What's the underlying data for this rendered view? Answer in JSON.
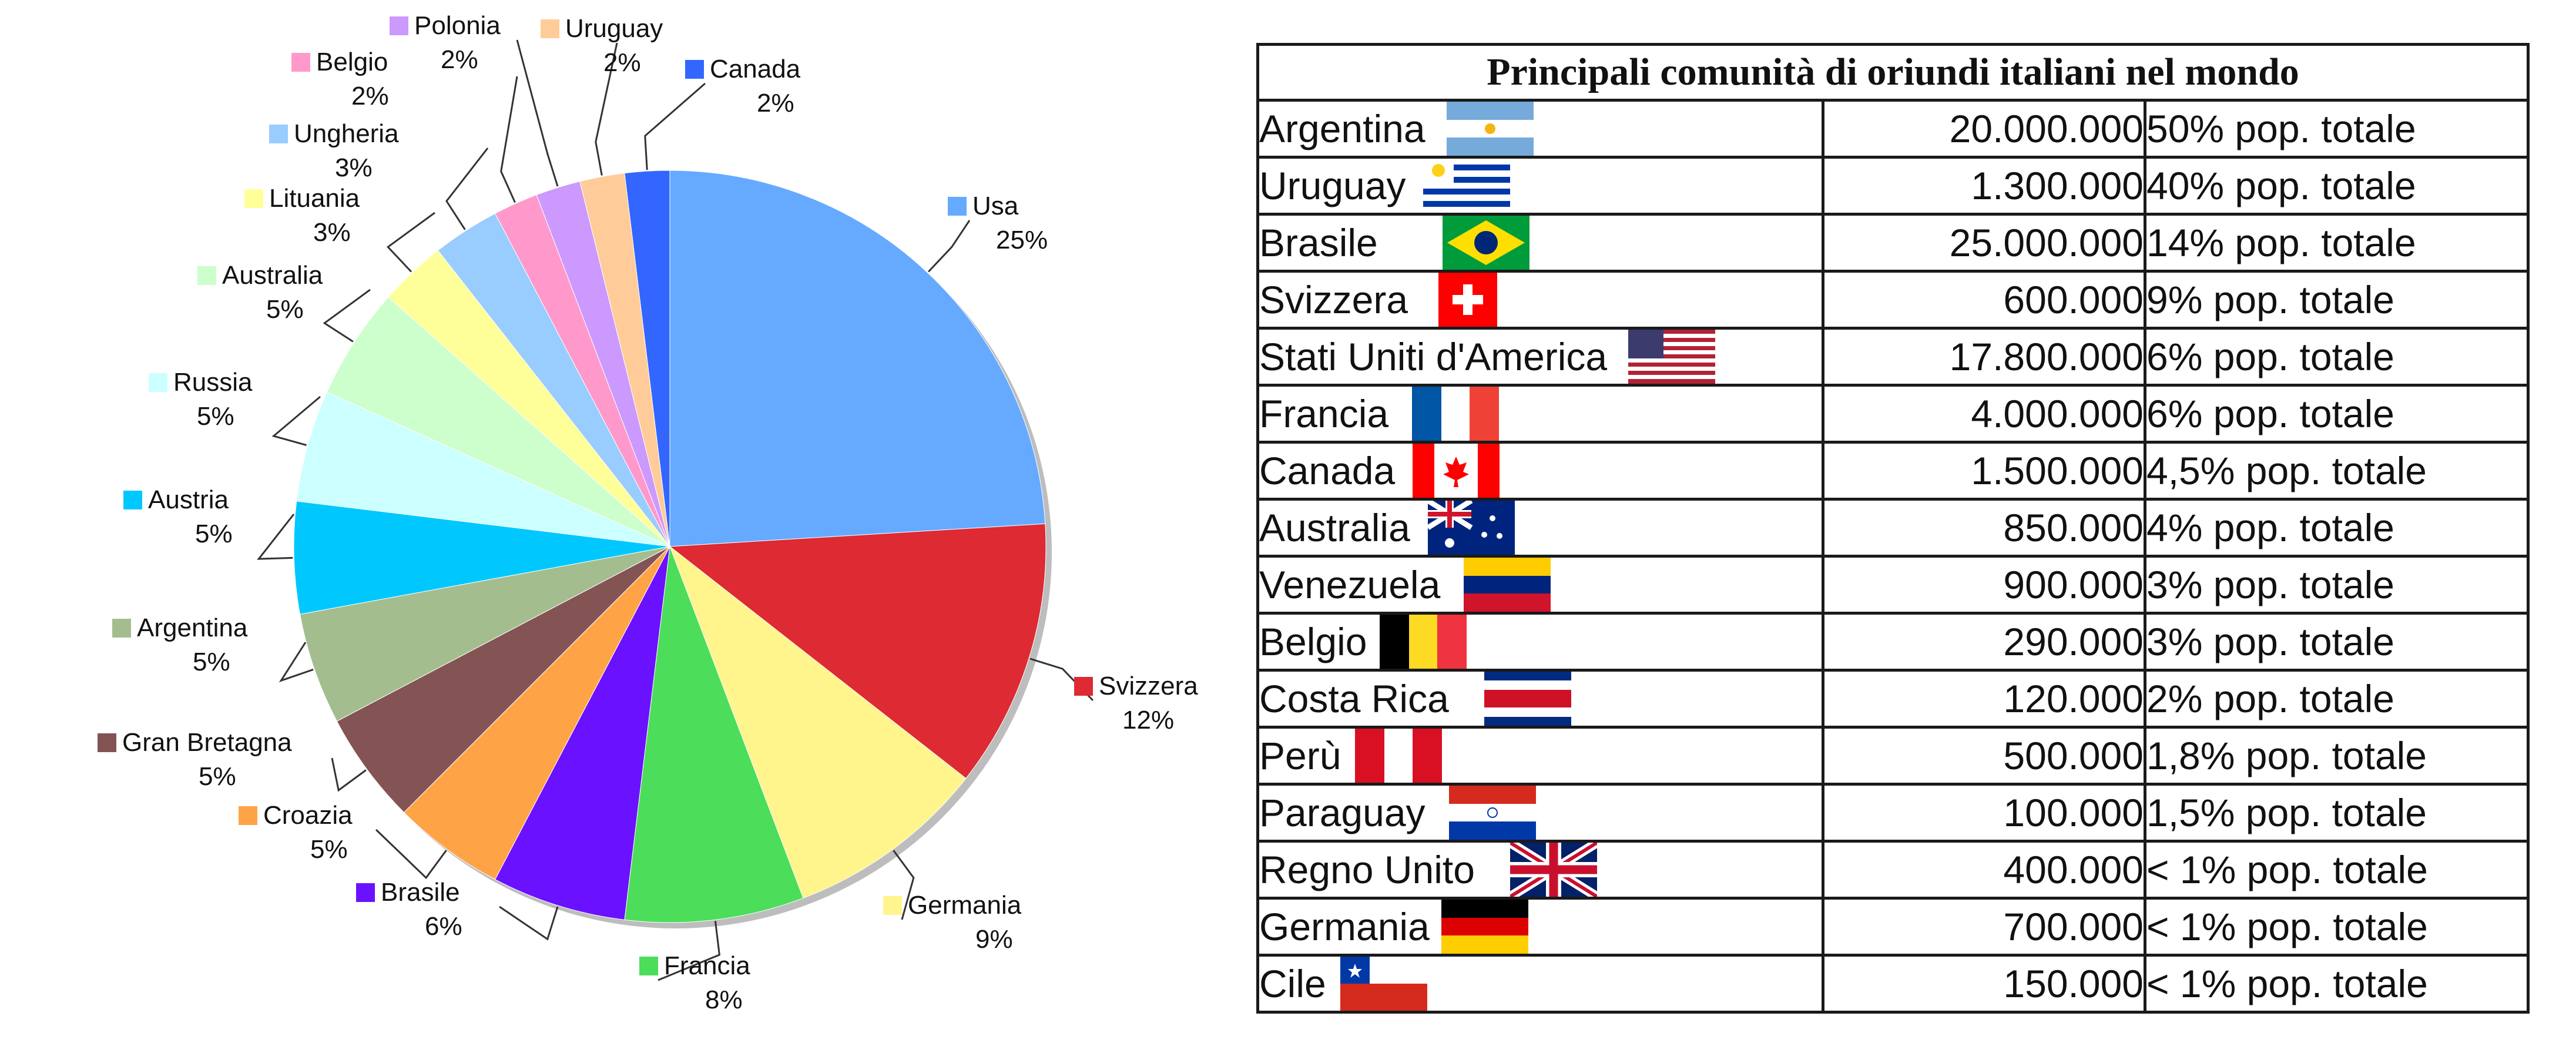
{
  "chart_data": [
    {
      "type": "pie",
      "slices": [
        {
          "label": "Usa",
          "value": 25,
          "pct_label": "25%",
          "color": "#66aaff"
        },
        {
          "label": "Svizzera",
          "value": 12,
          "pct_label": "12%",
          "color": "#dd2a33"
        },
        {
          "label": "Germania",
          "value": 9,
          "pct_label": "9%",
          "color": "#fff58c"
        },
        {
          "label": "Francia",
          "value": 8,
          "pct_label": "8%",
          "color": "#4cdd5a"
        },
        {
          "label": "Brasile",
          "value": 6,
          "pct_label": "6%",
          "color": "#6a11ff"
        },
        {
          "label": "Croazia",
          "value": 5,
          "pct_label": "5%",
          "color": "#ffa347"
        },
        {
          "label": "Gran Bretagna",
          "value": 5,
          "pct_label": "5%",
          "color": "#845353"
        },
        {
          "label": "Argentina",
          "value": 5,
          "pct_label": "5%",
          "color": "#a4bd8f"
        },
        {
          "label": "Austria",
          "value": 5,
          "pct_label": "5%",
          "color": "#00c8ff"
        },
        {
          "label": "Russia",
          "value": 5,
          "pct_label": "5%",
          "color": "#ccffff"
        },
        {
          "label": "Australia",
          "value": 5,
          "pct_label": "5%",
          "color": "#ccffcc"
        },
        {
          "label": "Lituania",
          "value": 3,
          "pct_label": "3%",
          "color": "#ffff99"
        },
        {
          "label": "Ungheria",
          "value": 3,
          "pct_label": "3%",
          "color": "#99ccff"
        },
        {
          "label": "Belgio",
          "value": 2,
          "pct_label": "2%",
          "color": "#ff99cc"
        },
        {
          "label": "Polonia",
          "value": 2,
          "pct_label": "2%",
          "color": "#cc99ff"
        },
        {
          "label": "Uruguay",
          "value": 2,
          "pct_label": "2%",
          "color": "#ffcc99"
        },
        {
          "label": "Canada",
          "value": 2,
          "pct_label": "2%",
          "color": "#3366ff"
        }
      ]
    },
    {
      "type": "table",
      "title": "Principali comunità di oriundi italiani nel mondo",
      "rows": [
        {
          "country": "Argentina",
          "value": "20.000.000",
          "pct": "50% pop. totale",
          "flag": "argentina-flag"
        },
        {
          "country": "Uruguay",
          "value": "1.300.000",
          "pct": "40% pop. totale",
          "flag": "uruguay-flag"
        },
        {
          "country": "Brasile",
          "value": "25.000.000",
          "pct": "14% pop. totale",
          "flag": "brazil-flag"
        },
        {
          "country": "Svizzera",
          "value": "600.000",
          "pct": "9% pop. totale",
          "flag": "switzerland-flag"
        },
        {
          "country": "Stati Uniti d'America",
          "value": "17.800.000",
          "pct": "6% pop. totale",
          "flag": "usa-flag"
        },
        {
          "country": "Francia",
          "value": "4.000.000",
          "pct": "6% pop. totale",
          "flag": "france-flag"
        },
        {
          "country": "Canada",
          "value": "1.500.000",
          "pct": "4,5% pop. totale",
          "flag": "canada-flag"
        },
        {
          "country": "Australia",
          "value": "850.000",
          "pct": "4% pop. totale",
          "flag": "australia-flag"
        },
        {
          "country": "Venezuela",
          "value": "900.000",
          "pct": "3% pop. totale",
          "flag": "venezuela-flag"
        },
        {
          "country": "Belgio",
          "value": "290.000",
          "pct": "3% pop. totale",
          "flag": "belgium-flag"
        },
        {
          "country": "Costa Rica",
          "value": "120.000",
          "pct": "2% pop. totale",
          "flag": "costa-rica-flag"
        },
        {
          "country": "Perù",
          "value": "500.000",
          "pct": "1,8% pop. totale",
          "flag": "peru-flag"
        },
        {
          "country": "Paraguay",
          "value": "100.000",
          "pct": "1,5% pop. totale",
          "flag": "paraguay-flag"
        },
        {
          "country": "Regno Unito",
          "value": "400.000",
          "pct": "< 1% pop. totale",
          "flag": "uk-flag"
        },
        {
          "country": "Germania",
          "value": "700.000",
          "pct": "< 1% pop. totale",
          "flag": "germany-flag"
        },
        {
          "country": "Cile",
          "value": "150.000",
          "pct": "< 1% pop. totale",
          "flag": "chile-flag"
        }
      ]
    }
  ]
}
